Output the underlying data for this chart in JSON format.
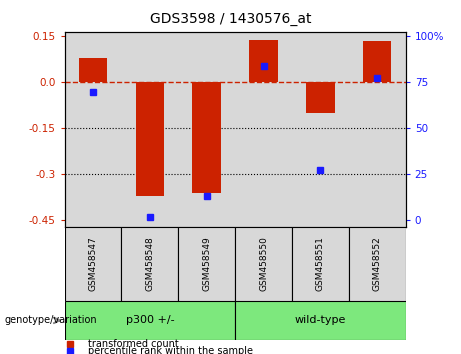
{
  "title": "GDS3598 / 1430576_at",
  "samples": [
    "GSM458547",
    "GSM458548",
    "GSM458549",
    "GSM458550",
    "GSM458551",
    "GSM458552"
  ],
  "bar_values": [
    0.08,
    -0.37,
    -0.36,
    0.14,
    -0.1,
    0.135
  ],
  "percentile_values": [
    -0.03,
    -0.44,
    -0.37,
    0.055,
    -0.285,
    0.015
  ],
  "bar_color": "#cc2200",
  "dot_color": "#1a1aff",
  "bg_color": "#d8d8d8",
  "green_color": "#7de87d",
  "ylim": [
    -0.47,
    0.165
  ],
  "yticks_left": [
    0.15,
    0.0,
    -0.15,
    -0.3,
    -0.45
  ],
  "yticks_right_labels": [
    "100%",
    "75",
    "50",
    "25",
    "0"
  ],
  "yticks_right_pct": [
    100,
    75,
    50,
    25,
    0
  ],
  "hline_y": 0.0,
  "dotted_lines": [
    -0.15,
    -0.3
  ],
  "group_label": "genotype/variation",
  "groups": [
    {
      "label": "p300 +/-",
      "start": 0,
      "end": 2
    },
    {
      "label": "wild-type",
      "start": 3,
      "end": 5
    }
  ],
  "legend_bar_label": "transformed count",
  "legend_dot_label": "percentile rank within the sample",
  "bar_width": 0.5
}
